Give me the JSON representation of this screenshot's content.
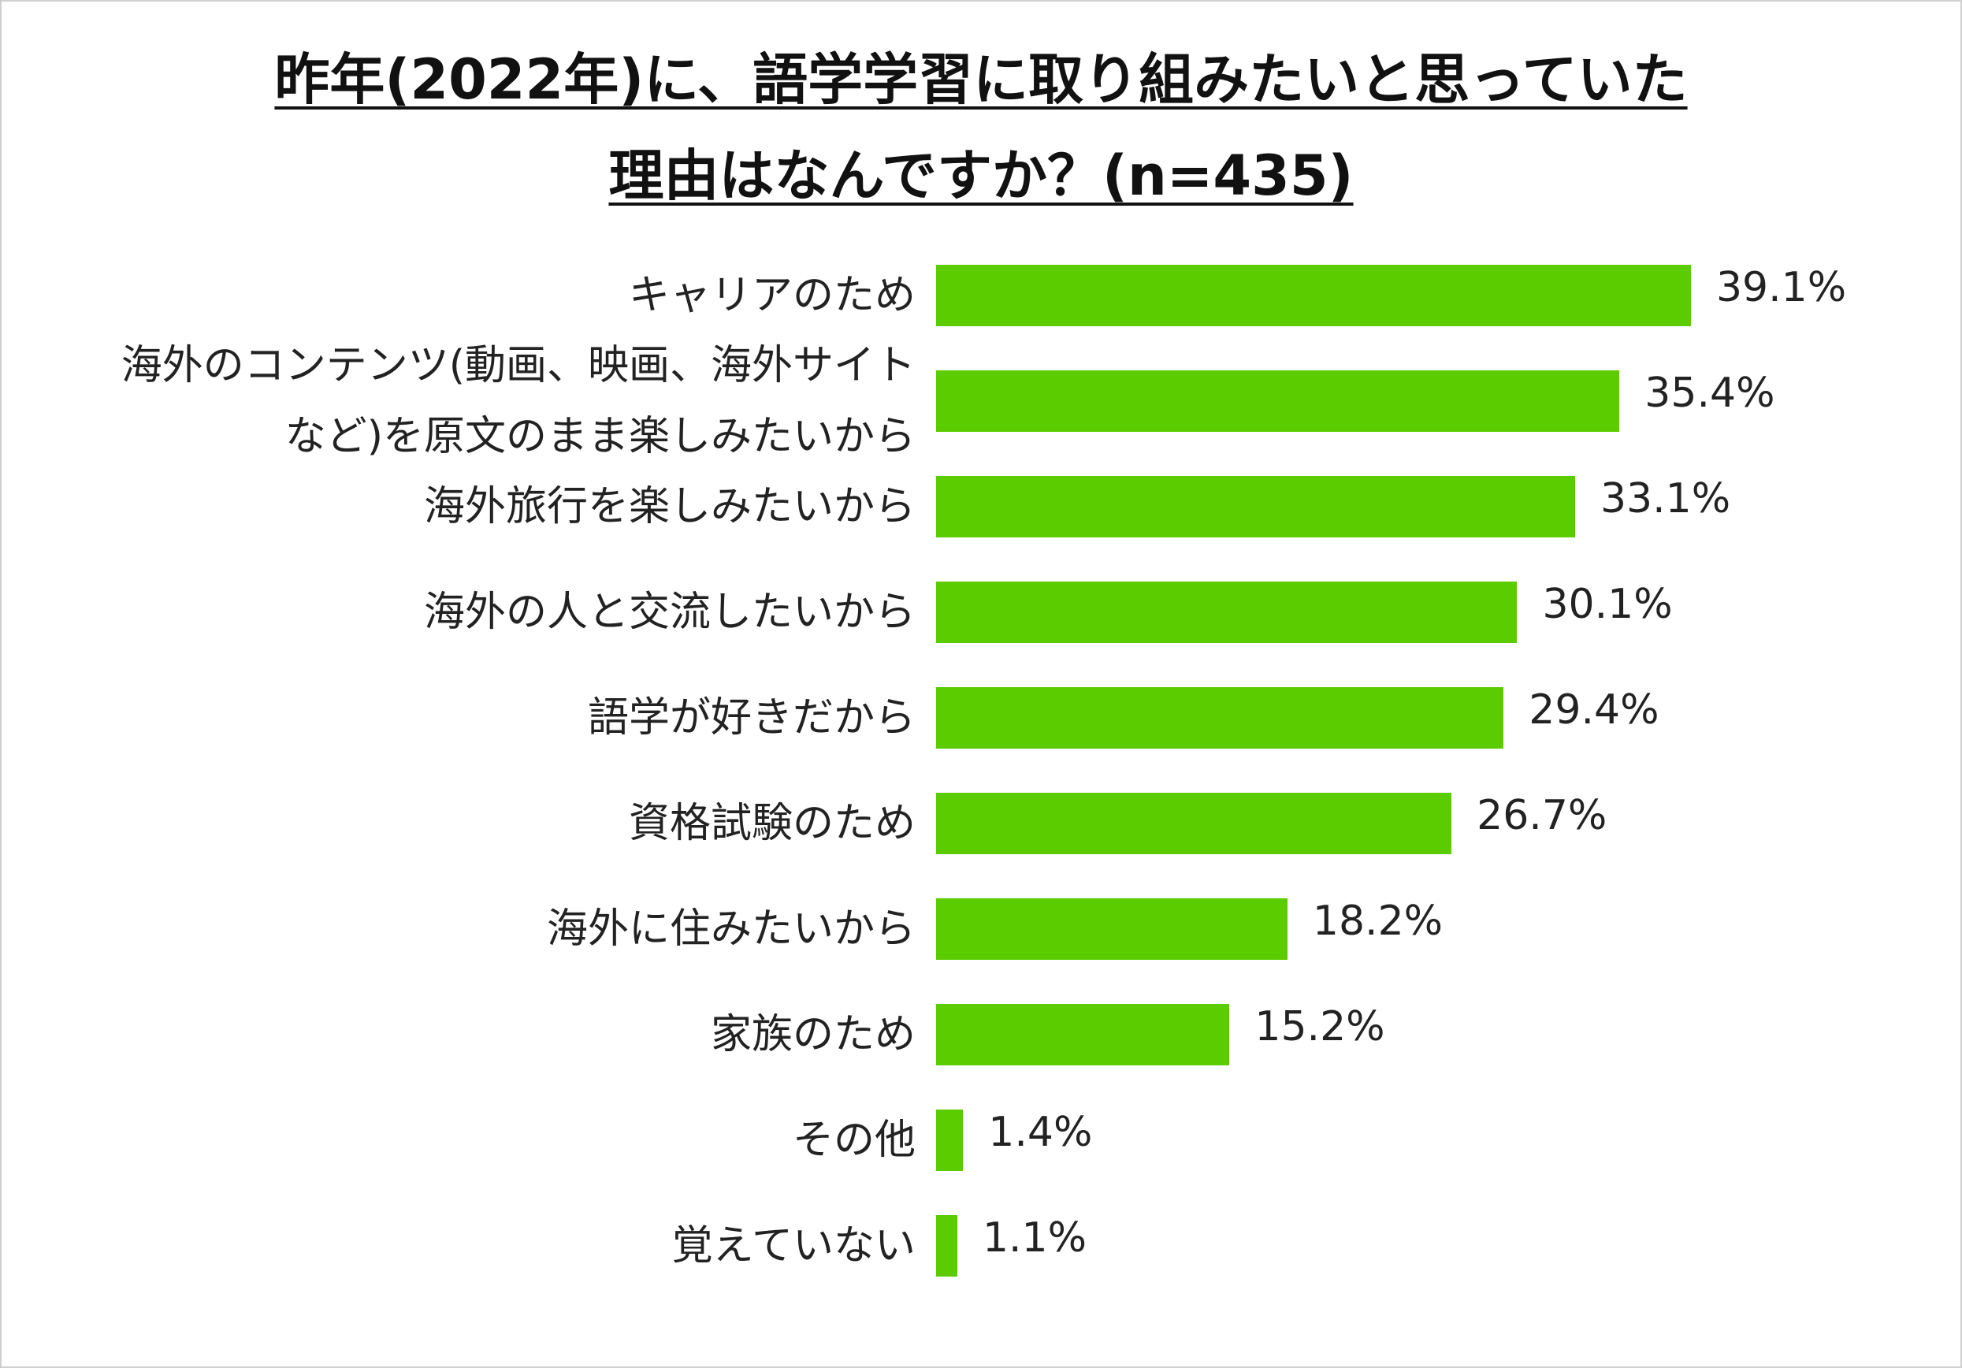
{
  "colors": {
    "bar": "#5bcc00",
    "text": "#222222",
    "border": "#cfcfcf"
  },
  "chart_data": {
    "type": "bar",
    "orientation": "horizontal",
    "title": [
      "昨年(2022年)に、語学学習に取り組みたいと思っていた",
      "理由はなんですか？(n=435)"
    ],
    "xlabel": "",
    "ylabel": "",
    "grid": false,
    "legend": "none",
    "xlim": [
      0,
      40
    ],
    "categories": [
      [
        "キャリアのため"
      ],
      [
        "海外のコンテンツ(動画、映画、海外サイト",
        "など)を原文のまま楽しみたいから"
      ],
      [
        "海外旅行を楽しみたいから"
      ],
      [
        "海外の人と交流したいから"
      ],
      [
        "語学が好きだから"
      ],
      [
        "資格試験のため"
      ],
      [
        "海外に住みたいから"
      ],
      [
        "家族のため"
      ],
      [
        "その他"
      ],
      [
        "覚えていない"
      ]
    ],
    "values": [
      39.1,
      35.4,
      33.1,
      30.1,
      29.4,
      26.7,
      18.2,
      15.2,
      1.4,
      1.1
    ],
    "value_labels": [
      "39.1%",
      "35.4%",
      "33.1%",
      "30.1%",
      "29.4%",
      "26.7%",
      "18.2%",
      "15.2%",
      "1.4%",
      "1.1%"
    ]
  }
}
